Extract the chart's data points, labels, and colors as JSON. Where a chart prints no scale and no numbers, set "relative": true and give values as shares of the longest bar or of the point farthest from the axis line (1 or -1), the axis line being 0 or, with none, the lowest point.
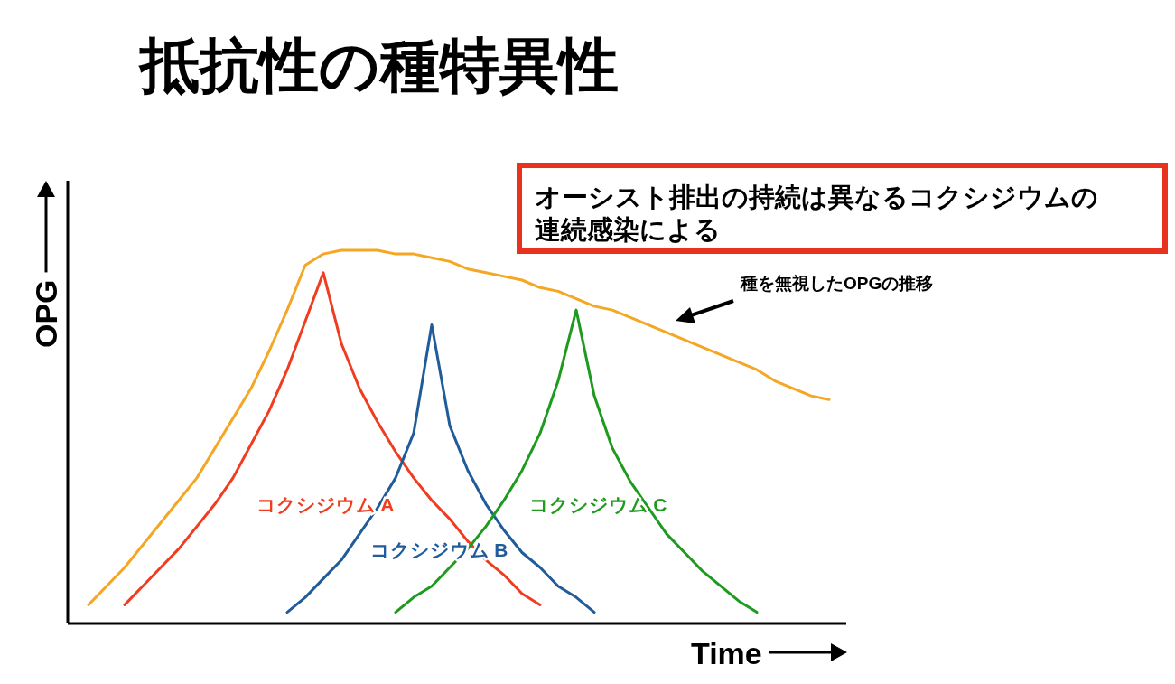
{
  "chart_data": {
    "type": "line",
    "relative": true,
    "title": "抵抗性の種特異性",
    "xlabel": "Time",
    "ylabel": "OPG",
    "categories": [
      null,
      null,
      null,
      null,
      null,
      null,
      null,
      null,
      null,
      null,
      null,
      null,
      null,
      null,
      null,
      null,
      null,
      null,
      null,
      null,
      null,
      null,
      null,
      null,
      null,
      null,
      null,
      null,
      null,
      null,
      null,
      null,
      null,
      null,
      null,
      null,
      null,
      null,
      null,
      null,
      null,
      null
    ],
    "series": [
      {
        "color": "#f5a623",
        "values": [
          0.05,
          0.1,
          0.15,
          0.21,
          0.27,
          0.33,
          0.39,
          0.47,
          0.55,
          0.63,
          0.73,
          0.84,
          0.96,
          0.99,
          1.0,
          1.0,
          1.0,
          0.99,
          0.99,
          0.98,
          0.97,
          0.95,
          0.94,
          0.93,
          0.92,
          0.9,
          0.89,
          0.87,
          0.85,
          0.84,
          0.82,
          0.8,
          0.78,
          0.76,
          0.74,
          0.72,
          0.7,
          0.68,
          0.65,
          0.63,
          0.61,
          0.6
        ]
      },
      {
        "name": "コクシジウム A",
        "color": "#f03c20",
        "values": [
          null,
          null,
          0.05,
          0.1,
          0.15,
          0.2,
          0.26,
          0.32,
          0.39,
          0.48,
          0.57,
          0.68,
          0.81,
          0.94,
          0.75,
          0.63,
          0.54,
          0.46,
          0.39,
          0.33,
          0.28,
          0.22,
          0.17,
          0.13,
          0.08,
          0.05,
          null,
          null,
          null,
          null,
          null,
          null,
          null,
          null,
          null,
          null,
          null,
          null,
          null,
          null,
          null,
          null
        ]
      },
      {
        "name": "コクシジウム B",
        "color": "#1f5c99",
        "values": [
          null,
          null,
          null,
          null,
          null,
          null,
          null,
          null,
          null,
          null,
          null,
          0.03,
          0.07,
          0.12,
          0.17,
          0.24,
          0.31,
          0.39,
          0.51,
          0.8,
          0.53,
          0.41,
          0.32,
          0.25,
          0.19,
          0.15,
          0.1,
          0.07,
          0.03,
          null,
          null,
          null,
          null,
          null,
          null,
          null,
          null,
          null,
          null,
          null,
          null,
          null
        ]
      },
      {
        "name": "コクシジウム C",
        "color": "#1e9a1e",
        "values": [
          null,
          null,
          null,
          null,
          null,
          null,
          null,
          null,
          null,
          null,
          null,
          null,
          null,
          null,
          null,
          null,
          null,
          0.03,
          0.07,
          0.1,
          0.15,
          0.2,
          0.26,
          0.33,
          0.41,
          0.51,
          0.65,
          0.84,
          0.61,
          0.47,
          0.38,
          0.31,
          0.24,
          0.19,
          0.14,
          0.1,
          0.06,
          0.03,
          null,
          null,
          null,
          null
        ]
      }
    ],
    "annotations": [
      "オーシスト排出の持続は異なるコクシジウムの連続感染による",
      "種を無視したOPGの推移"
    ]
  }
}
